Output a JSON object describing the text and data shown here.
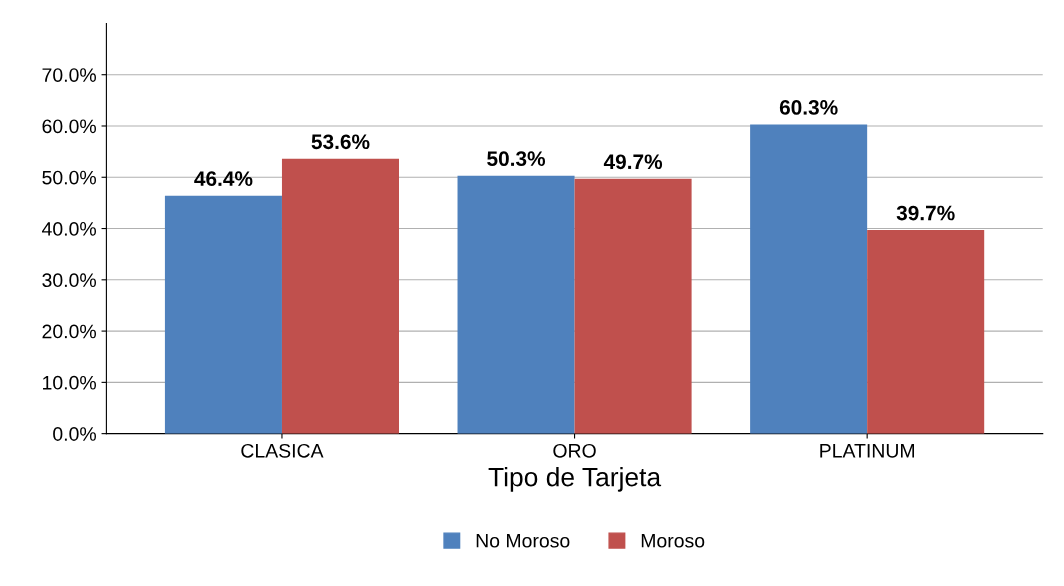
{
  "chart_data": {
    "type": "bar",
    "xlabel": "Tipo de Tarjeta",
    "categories": [
      "CLASICA",
      "ORO",
      "PLATINUM"
    ],
    "series": [
      {
        "name": "No Moroso",
        "color": "#4f81bd",
        "values": [
          46.4,
          50.3,
          60.3
        ],
        "value_labels": [
          "46.4%",
          "50.3%",
          "60.3%"
        ]
      },
      {
        "name": "Moroso",
        "color": "#c0504d",
        "values": [
          53.6,
          49.7,
          39.7
        ],
        "value_labels": [
          "53.6%",
          "49.7%",
          "39.7%"
        ]
      }
    ],
    "ylim": [
      0,
      80
    ],
    "yticks": [
      {
        "value": 0,
        "label": "0.0%"
      },
      {
        "value": 10,
        "label": "10.0%"
      },
      {
        "value": 20,
        "label": "20.0%"
      },
      {
        "value": 30,
        "label": "30.0%"
      },
      {
        "value": 40,
        "label": "40.0%"
      },
      {
        "value": 50,
        "label": "50.0%"
      },
      {
        "value": 60,
        "label": "60.0%"
      },
      {
        "value": 70,
        "label": "70.0%"
      }
    ],
    "grid": "y",
    "legend": "bottom"
  }
}
